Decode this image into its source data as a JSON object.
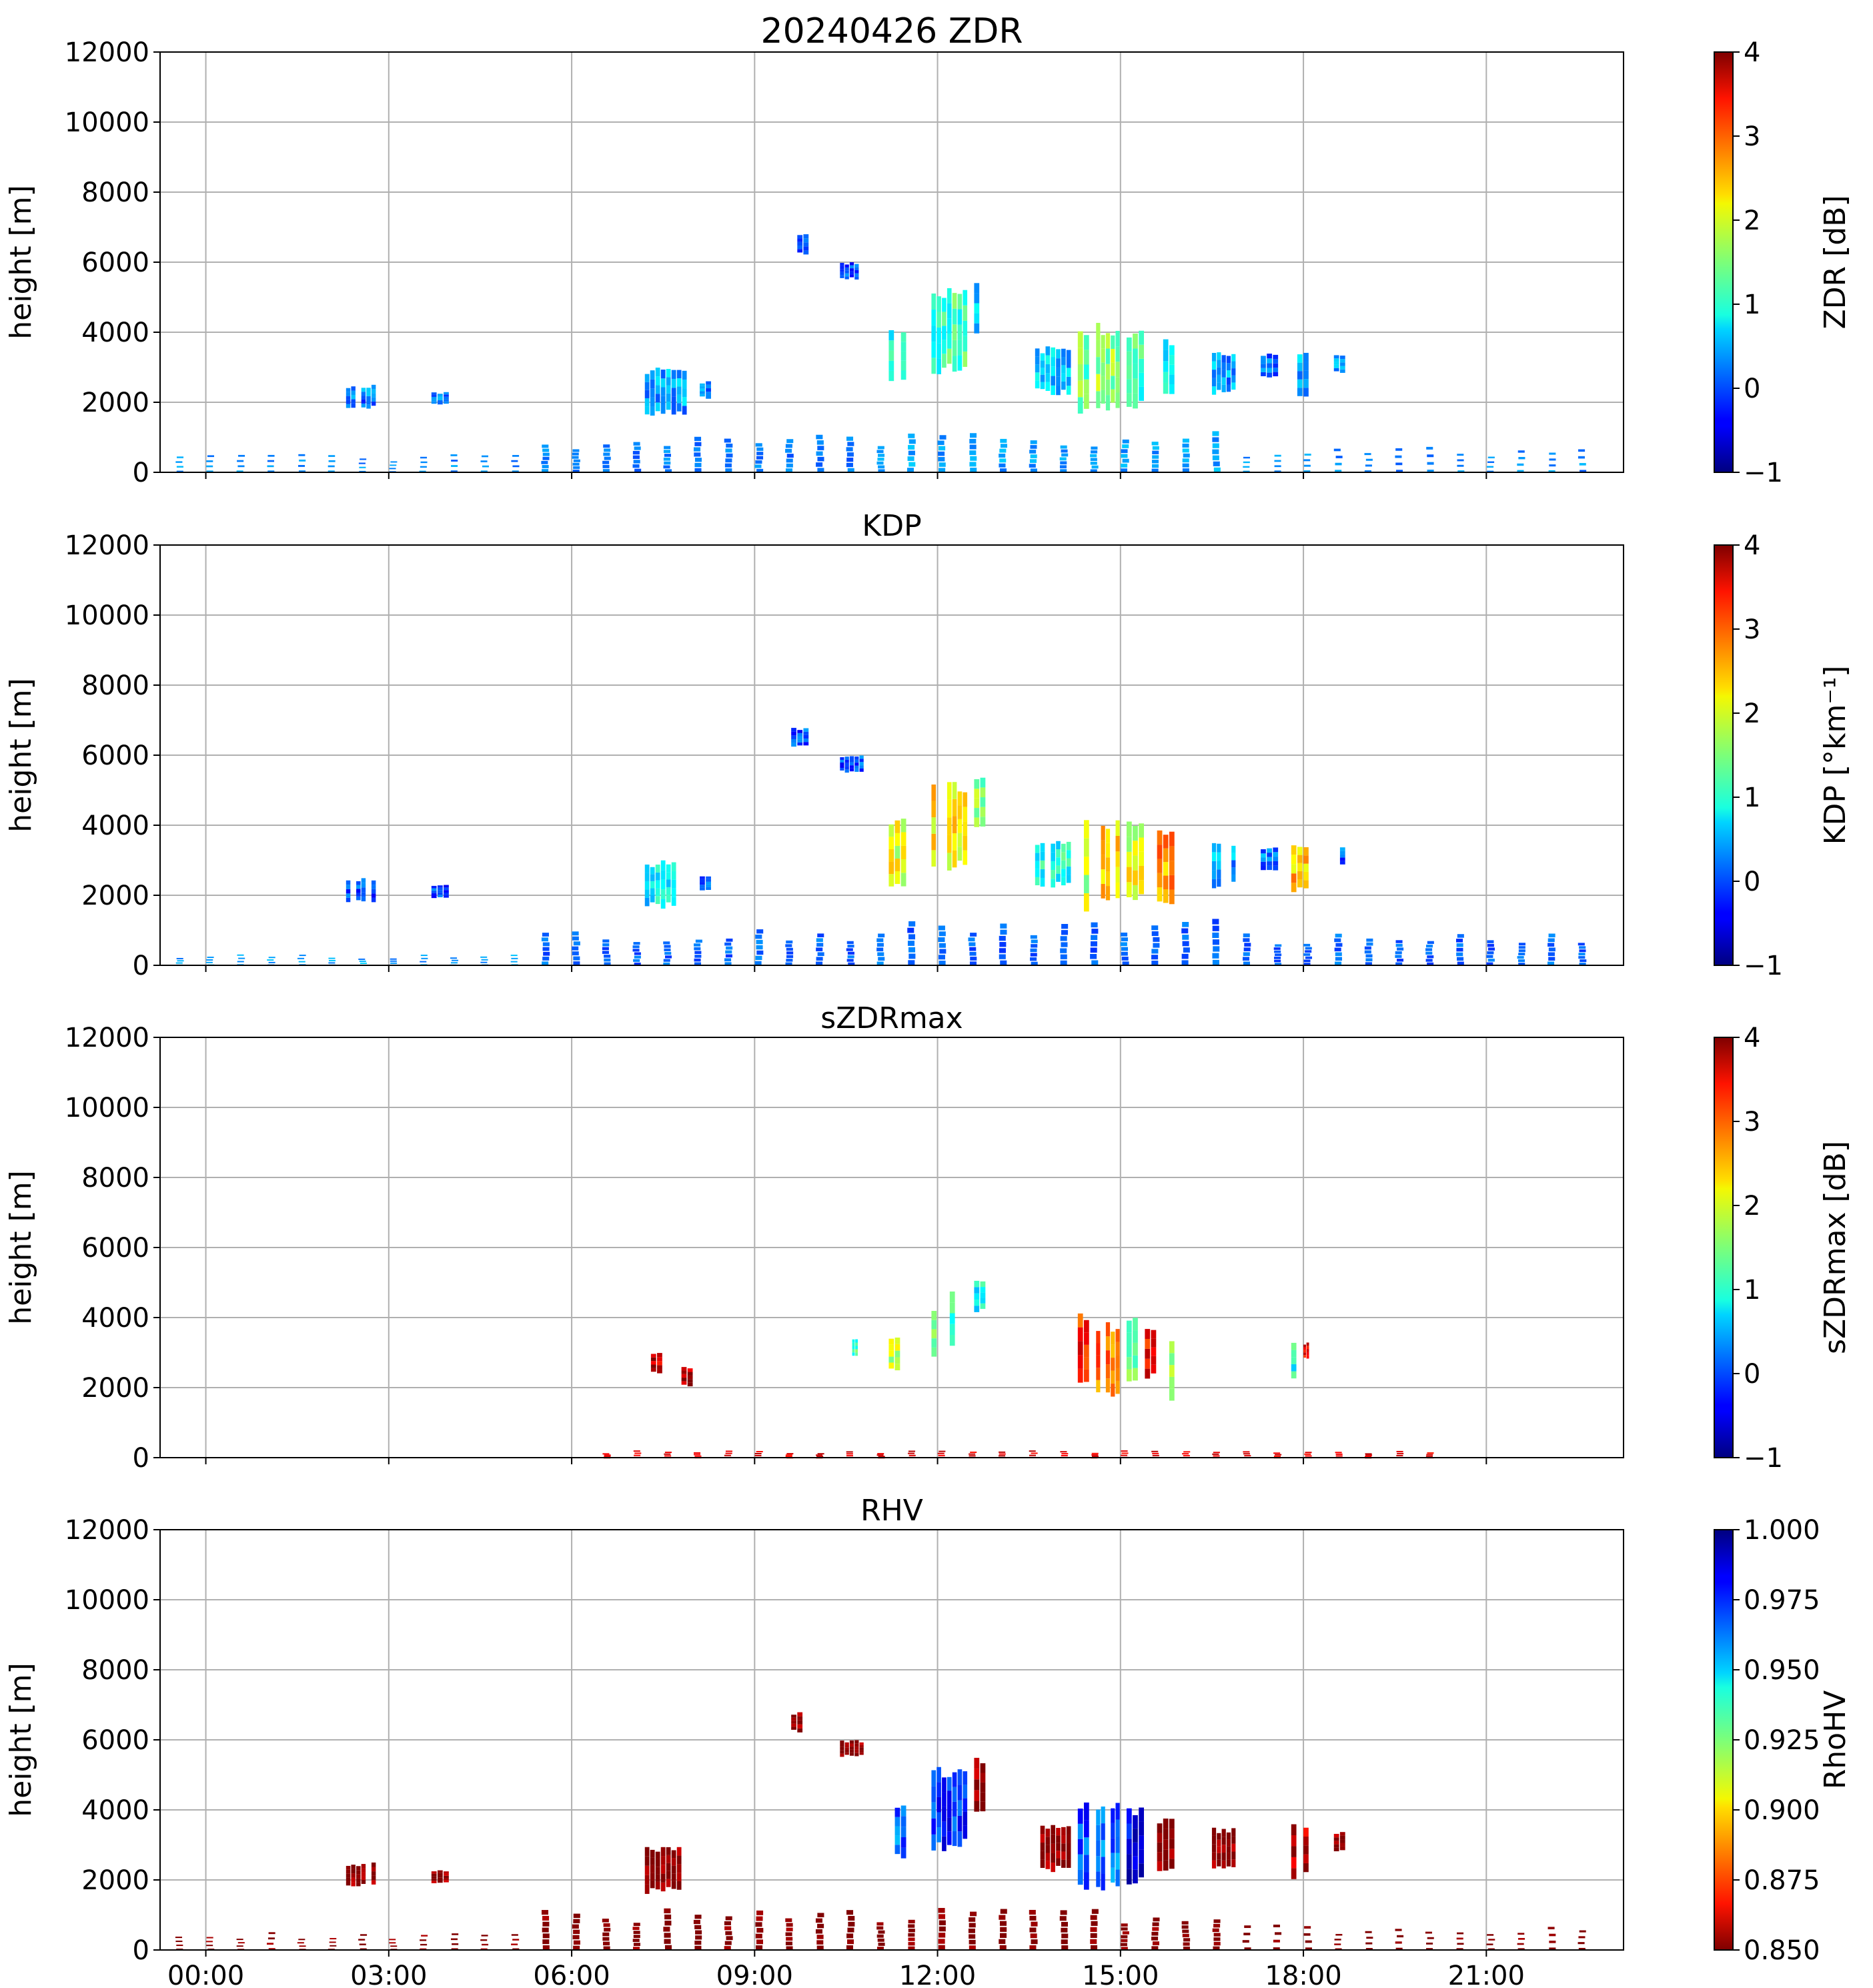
{
  "figure": {
    "x_tick_labels": [
      "00:00",
      "03:00",
      "06:00",
      "09:00",
      "12:00",
      "15:00",
      "18:00",
      "21:00"
    ],
    "y_tick_labels": [
      "0",
      "2000",
      "4000",
      "6000",
      "8000",
      "10000",
      "12000"
    ],
    "ylabel": "height [m]"
  },
  "chart_data": [
    {
      "type": "heatmap",
      "title": "20240426 ZDR",
      "ylabel": "height [m]",
      "xlim_hours": [
        -0.75,
        23.25
      ],
      "ylim": [
        0,
        12000
      ],
      "x_ticks": [
        0,
        3,
        6,
        9,
        12,
        15,
        18,
        21
      ],
      "grid": true,
      "colormap": "jet",
      "colorbar": {
        "label": "ZDR [dB]",
        "range": [
          -1,
          4
        ],
        "ticks": [
          "−1",
          "0",
          "1",
          "2",
          "3",
          "4"
        ],
        "reversed": false
      },
      "echoes": [
        {
          "t0": 2.3,
          "t1": 2.8,
          "h0": 1800,
          "h1": 2500,
          "v": 0.2
        },
        {
          "t0": 3.7,
          "t1": 4.0,
          "h0": 1900,
          "h1": 2300,
          "v": 0.2
        },
        {
          "t0": 7.2,
          "t1": 7.9,
          "h0": 1600,
          "h1": 3000,
          "v": 0.4
        },
        {
          "t0": 8.1,
          "t1": 8.3,
          "h0": 2100,
          "h1": 2600,
          "v": 0.3
        },
        {
          "t0": 9.6,
          "t1": 9.9,
          "h0": 6200,
          "h1": 6800,
          "v": 0.1
        },
        {
          "t0": 10.4,
          "t1": 10.8,
          "h0": 5500,
          "h1": 6000,
          "v": 0.0
        },
        {
          "t0": 11.2,
          "t1": 11.5,
          "h0": 2600,
          "h1": 4200,
          "v": 1.0
        },
        {
          "t0": 11.9,
          "t1": 12.5,
          "h0": 2800,
          "h1": 5300,
          "v": 1.2
        },
        {
          "t0": 12.6,
          "t1": 12.8,
          "h0": 3800,
          "h1": 5500,
          "v": 0.6
        },
        {
          "t0": 13.6,
          "t1": 14.2,
          "h0": 2200,
          "h1": 3600,
          "v": 0.6
        },
        {
          "t0": 14.3,
          "t1": 14.5,
          "h0": 1500,
          "h1": 4300,
          "v": 1.4
        },
        {
          "t0": 14.6,
          "t1": 15.0,
          "h0": 1600,
          "h1": 4300,
          "v": 1.6
        },
        {
          "t0": 15.1,
          "t1": 15.4,
          "h0": 1800,
          "h1": 4200,
          "v": 1.2
        },
        {
          "t0": 15.6,
          "t1": 15.9,
          "h0": 2100,
          "h1": 3800,
          "v": 0.8
        },
        {
          "t0": 16.5,
          "t1": 16.9,
          "h0": 2200,
          "h1": 3500,
          "v": 0.4
        },
        {
          "t0": 17.3,
          "t1": 17.6,
          "h0": 2700,
          "h1": 3400,
          "v": 0.2
        },
        {
          "t0": 17.8,
          "t1": 18.1,
          "h0": 2000,
          "h1": 3600,
          "v": 0.5
        },
        {
          "t0": 18.5,
          "t1": 18.7,
          "h0": 2800,
          "h1": 3400,
          "v": 0.3
        }
      ],
      "low_columns": [
        {
          "t0": -0.5,
          "t1": 5.5,
          "h1": 500,
          "v": 0.3,
          "period": 0.5,
          "sparse": true
        },
        {
          "t0": 5.5,
          "t1": 11.0,
          "h1": 900,
          "v": 0.2,
          "period": 0.5,
          "sparse": false
        },
        {
          "t0": 11.0,
          "t1": 17.0,
          "h1": 1000,
          "v": 0.4,
          "period": 0.5,
          "sparse": false
        },
        {
          "t0": 17.0,
          "t1": 23.0,
          "h1": 700,
          "v": 0.3,
          "period": 0.5,
          "sparse": true
        }
      ]
    },
    {
      "type": "heatmap",
      "title": "KDP",
      "ylabel": "height [m]",
      "xlim_hours": [
        -0.75,
        23.25
      ],
      "ylim": [
        0,
        12000
      ],
      "x_ticks": [
        0,
        3,
        6,
        9,
        12,
        15,
        18,
        21
      ],
      "grid": true,
      "colormap": "jet",
      "colorbar": {
        "label": "KDP [°km⁻¹]",
        "range": [
          -1,
          4
        ],
        "ticks": [
          "−1",
          "0",
          "1",
          "2",
          "3",
          "4"
        ],
        "reversed": false
      },
      "echoes": [
        {
          "t0": 2.3,
          "t1": 2.8,
          "h0": 1800,
          "h1": 2500,
          "v": 0.0
        },
        {
          "t0": 3.7,
          "t1": 4.0,
          "h0": 1900,
          "h1": 2300,
          "v": 0.0
        },
        {
          "t0": 7.2,
          "t1": 7.9,
          "h0": 1600,
          "h1": 3000,
          "v": 0.8
        },
        {
          "t0": 8.1,
          "t1": 8.3,
          "h0": 2100,
          "h1": 2600,
          "v": 0.1
        },
        {
          "t0": 9.6,
          "t1": 9.9,
          "h0": 6200,
          "h1": 6800,
          "v": 0.0
        },
        {
          "t0": 10.4,
          "t1": 10.8,
          "h0": 5500,
          "h1": 6000,
          "v": 0.0
        },
        {
          "t0": 11.2,
          "t1": 11.5,
          "h0": 2200,
          "h1": 4200,
          "v": 2.0
        },
        {
          "t0": 11.9,
          "t1": 12.5,
          "h0": 2600,
          "h1": 5300,
          "v": 2.2
        },
        {
          "t0": 12.6,
          "t1": 12.8,
          "h0": 3800,
          "h1": 5500,
          "v": 1.6
        },
        {
          "t0": 13.6,
          "t1": 14.2,
          "h0": 2200,
          "h1": 3600,
          "v": 1.0
        },
        {
          "t0": 14.3,
          "t1": 14.5,
          "h0": 1400,
          "h1": 4300,
          "v": 1.8
        },
        {
          "t0": 14.6,
          "t1": 15.0,
          "h0": 1600,
          "h1": 4300,
          "v": 2.4
        },
        {
          "t0": 15.1,
          "t1": 15.4,
          "h0": 1800,
          "h1": 4200,
          "v": 2.0
        },
        {
          "t0": 15.6,
          "t1": 15.9,
          "h0": 1500,
          "h1": 4000,
          "v": 2.6
        },
        {
          "t0": 16.5,
          "t1": 16.9,
          "h0": 2200,
          "h1": 3500,
          "v": 0.4
        },
        {
          "t0": 17.3,
          "t1": 17.6,
          "h0": 2700,
          "h1": 3400,
          "v": 0.2
        },
        {
          "t0": 17.8,
          "t1": 18.1,
          "h0": 2000,
          "h1": 3600,
          "v": 2.4
        },
        {
          "t0": 18.5,
          "t1": 18.7,
          "h0": 2800,
          "h1": 3400,
          "v": 0.1
        }
      ],
      "low_columns": [
        {
          "t0": -0.5,
          "t1": 5.5,
          "h1": 300,
          "v": 0.4,
          "period": 0.5,
          "sparse": true
        },
        {
          "t0": 5.5,
          "t1": 11.0,
          "h1": 900,
          "v": 0.1,
          "period": 0.5,
          "sparse": false
        },
        {
          "t0": 11.0,
          "t1": 17.0,
          "h1": 1100,
          "v": 0.1,
          "period": 0.5,
          "sparse": false
        },
        {
          "t0": 17.0,
          "t1": 23.0,
          "h1": 800,
          "v": 0.1,
          "period": 0.5,
          "sparse": false
        }
      ]
    },
    {
      "type": "heatmap",
      "title": "sZDRmax",
      "ylabel": "height [m]",
      "xlim_hours": [
        -0.75,
        23.25
      ],
      "ylim": [
        0,
        12000
      ],
      "x_ticks": [
        0,
        3,
        6,
        9,
        12,
        15,
        18,
        21
      ],
      "grid": true,
      "colormap": "jet",
      "colorbar": {
        "label": "sZDRmax [dB]",
        "range": [
          -1,
          4
        ],
        "ticks": [
          "−1",
          "0",
          "1",
          "2",
          "3",
          "4"
        ],
        "reversed": false
      },
      "echoes": [
        {
          "t0": 7.3,
          "t1": 7.5,
          "h0": 2400,
          "h1": 3000,
          "v": 3.6
        },
        {
          "t0": 7.8,
          "t1": 8.0,
          "h0": 2000,
          "h1": 2600,
          "v": 3.8
        },
        {
          "t0": 10.6,
          "t1": 10.7,
          "h0": 2900,
          "h1": 3400,
          "v": 1.2
        },
        {
          "t0": 11.2,
          "t1": 11.5,
          "h0": 2400,
          "h1": 3500,
          "v": 1.8
        },
        {
          "t0": 11.9,
          "t1": 12.1,
          "h0": 2800,
          "h1": 4300,
          "v": 1.4
        },
        {
          "t0": 12.2,
          "t1": 12.4,
          "h0": 3000,
          "h1": 5000,
          "v": 1.1
        },
        {
          "t0": 12.6,
          "t1": 12.8,
          "h0": 4100,
          "h1": 5100,
          "v": 0.9
        },
        {
          "t0": 14.3,
          "t1": 14.5,
          "h0": 2000,
          "h1": 4200,
          "v": 3.2
        },
        {
          "t0": 14.6,
          "t1": 15.0,
          "h0": 1700,
          "h1": 3900,
          "v": 2.8
        },
        {
          "t0": 15.1,
          "t1": 15.3,
          "h0": 1900,
          "h1": 4000,
          "v": 1.3
        },
        {
          "t0": 15.4,
          "t1": 15.6,
          "h0": 2200,
          "h1": 3800,
          "v": 3.4
        },
        {
          "t0": 15.7,
          "t1": 15.9,
          "h0": 1600,
          "h1": 3600,
          "v": 1.6
        },
        {
          "t0": 17.8,
          "t1": 18.0,
          "h0": 2200,
          "h1": 3400,
          "v": 1.0
        },
        {
          "t0": 18.0,
          "t1": 18.1,
          "h0": 2800,
          "h1": 3300,
          "v": 3.5
        }
      ],
      "low_columns": [
        {
          "t0": 6.5,
          "t1": 20.5,
          "h1": 200,
          "v": 3.5,
          "period": 0.5,
          "sparse": true
        }
      ]
    },
    {
      "type": "heatmap",
      "title": "RHV",
      "ylabel": "height [m]",
      "xlim_hours": [
        -0.75,
        23.25
      ],
      "ylim": [
        0,
        12000
      ],
      "x_ticks": [
        0,
        3,
        6,
        9,
        12,
        15,
        18,
        21
      ],
      "grid": true,
      "colormap": "jet_r",
      "colorbar": {
        "label": "RhoHV",
        "range": [
          0.85,
          1.0
        ],
        "ticks": [
          "0.850",
          "0.875",
          "0.900",
          "0.925",
          "0.950",
          "0.975",
          "1.000"
        ],
        "reversed": true
      },
      "echoes": [
        {
          "t0": 2.3,
          "t1": 2.8,
          "h0": 1800,
          "h1": 2500,
          "v": 0.85
        },
        {
          "t0": 3.7,
          "t1": 4.0,
          "h0": 1900,
          "h1": 2300,
          "v": 0.85
        },
        {
          "t0": 7.2,
          "t1": 7.9,
          "h0": 1600,
          "h1": 3000,
          "v": 0.85
        },
        {
          "t0": 8.1,
          "t1": 8.3,
          "h0": 2100,
          "h1": 2600,
          "v": 0.85
        },
        {
          "t0": 9.6,
          "t1": 9.9,
          "h0": 6200,
          "h1": 6800,
          "v": 0.85
        },
        {
          "t0": 10.4,
          "t1": 10.8,
          "h0": 5500,
          "h1": 6000,
          "v": 0.85
        },
        {
          "t0": 11.2,
          "t1": 11.5,
          "h0": 2600,
          "h1": 4200,
          "v": 0.965
        },
        {
          "t0": 11.9,
          "t1": 12.5,
          "h0": 2800,
          "h1": 5300,
          "v": 0.975
        },
        {
          "t0": 12.6,
          "t1": 12.8,
          "h0": 3800,
          "h1": 5500,
          "v": 0.85
        },
        {
          "t0": 13.6,
          "t1": 14.2,
          "h0": 2200,
          "h1": 3600,
          "v": 0.85
        },
        {
          "t0": 14.3,
          "t1": 14.5,
          "h0": 1500,
          "h1": 4300,
          "v": 0.97
        },
        {
          "t0": 14.6,
          "t1": 15.0,
          "h0": 1600,
          "h1": 4300,
          "v": 0.965
        },
        {
          "t0": 15.1,
          "t1": 15.4,
          "h0": 1800,
          "h1": 4200,
          "v": 0.985
        },
        {
          "t0": 15.6,
          "t1": 15.9,
          "h0": 2100,
          "h1": 3800,
          "v": 0.85
        },
        {
          "t0": 16.5,
          "t1": 16.9,
          "h0": 2200,
          "h1": 3500,
          "v": 0.85
        },
        {
          "t0": 17.8,
          "t1": 18.1,
          "h0": 2000,
          "h1": 3600,
          "v": 0.86
        },
        {
          "t0": 18.5,
          "t1": 18.7,
          "h0": 2800,
          "h1": 3400,
          "v": 0.85
        }
      ],
      "low_columns": [
        {
          "t0": -0.5,
          "t1": 5.5,
          "h1": 500,
          "v": 0.85,
          "period": 0.5,
          "sparse": true
        },
        {
          "t0": 5.5,
          "t1": 17.0,
          "h1": 1000,
          "v": 0.85,
          "period": 0.5,
          "sparse": false
        },
        {
          "t0": 17.0,
          "t1": 23.0,
          "h1": 700,
          "v": 0.85,
          "period": 0.5,
          "sparse": true
        }
      ]
    }
  ]
}
